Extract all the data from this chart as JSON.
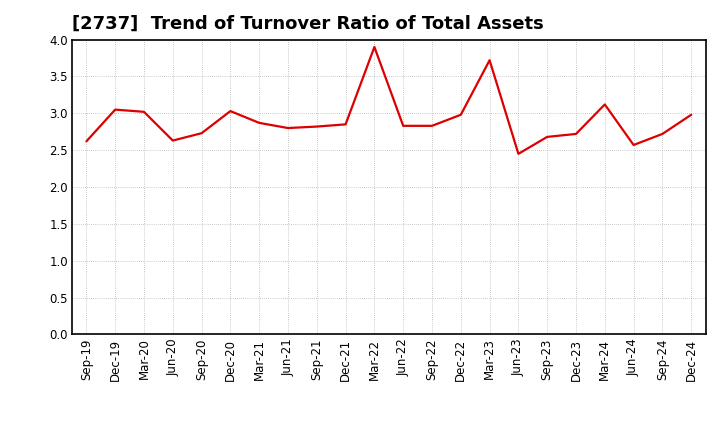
{
  "title": "[2737]  Trend of Turnover Ratio of Total Assets",
  "x_labels": [
    "Sep-19",
    "Dec-19",
    "Mar-20",
    "Jun-20",
    "Sep-20",
    "Dec-20",
    "Mar-21",
    "Jun-21",
    "Sep-21",
    "Dec-21",
    "Mar-22",
    "Jun-22",
    "Sep-22",
    "Dec-22",
    "Mar-23",
    "Jun-23",
    "Sep-23",
    "Dec-23",
    "Mar-24",
    "Jun-24",
    "Sep-24",
    "Dec-24"
  ],
  "y_values": [
    2.62,
    3.05,
    3.02,
    2.63,
    2.73,
    3.03,
    2.87,
    2.8,
    2.82,
    2.85,
    3.9,
    2.83,
    2.83,
    2.98,
    3.72,
    2.45,
    2.68,
    2.72,
    3.12,
    2.57,
    2.72,
    2.98
  ],
  "ylim": [
    0.0,
    4.0
  ],
  "yticks": [
    0.0,
    0.5,
    1.0,
    1.5,
    2.0,
    2.5,
    3.0,
    3.5,
    4.0
  ],
  "line_color": "#dd0000",
  "line_width": 1.6,
  "background_color": "#ffffff",
  "grid_color": "#999999",
  "title_fontsize": 13,
  "tick_fontsize": 8.5
}
